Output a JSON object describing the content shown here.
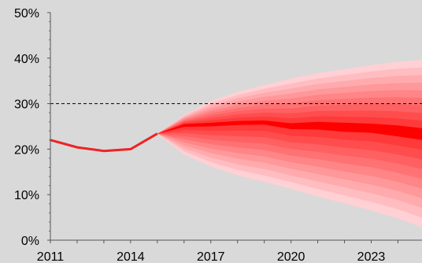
{
  "chart_data": {
    "type": "area",
    "grid": false,
    "legend": "none",
    "x_range": [
      2011,
      2024.9
    ],
    "ylim": [
      0,
      50
    ],
    "y_ticks": [
      "0%",
      "10%",
      "20%",
      "30%",
      "40%",
      "50%"
    ],
    "x_ticks": [
      "2011",
      "2014",
      "2017",
      "2020",
      "2023"
    ],
    "reference_line": {
      "y": 30,
      "style": "dashed",
      "color": "#000000"
    },
    "colors": {
      "background": "#d9d9d9",
      "history_line": "#ee2222",
      "median_line": "#ff0000",
      "fan_outer": "#ffd0d4",
      "fan_inner": "#ff3a3a"
    },
    "history": {
      "x": [
        2011,
        2012,
        2013,
        2014,
        2015
      ],
      "y": [
        22.0,
        20.4,
        19.6,
        20.0,
        23.4
      ]
    },
    "projection": {
      "x": [
        2015,
        2016,
        2017,
        2018,
        2019,
        2020,
        2021,
        2022,
        2023,
        2024,
        2024.9
      ],
      "median_low": [
        23.4,
        24.9,
        25.0,
        25.3,
        25.4,
        24.4,
        24.3,
        23.8,
        23.6,
        22.8,
        22.0
      ],
      "median_high": [
        23.4,
        25.5,
        25.8,
        26.2,
        26.3,
        25.7,
        26.0,
        25.8,
        25.6,
        25.2,
        24.6
      ],
      "lower": [
        23.4,
        18.8,
        16.2,
        14.2,
        12.8,
        11.3,
        9.6,
        8.1,
        6.5,
        4.8,
        2.8
      ],
      "upper": [
        23.4,
        27.5,
        30.6,
        32.6,
        34.1,
        35.5,
        36.7,
        37.6,
        38.5,
        39.2,
        39.6
      ]
    },
    "bands": 9
  }
}
